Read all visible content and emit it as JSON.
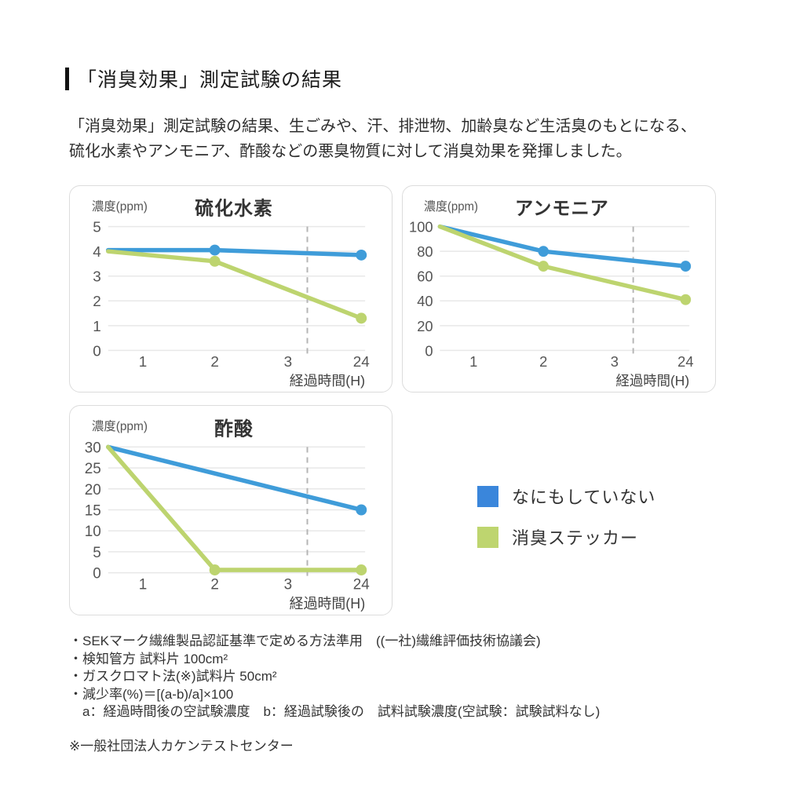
{
  "page": {
    "title": "「消臭効果」測定試験の結果",
    "description_lines": [
      "「消臭効果」測定試験の結果、生ごみや、汗、排泄物、加齢臭など生活臭のもとになる、",
      "硫化水素やアンモニア、酢酸などの悪臭物質に対して消臭効果を発揮しました。"
    ]
  },
  "colors": {
    "line_blue": "#3f9cd9",
    "line_green": "#bdd46f",
    "legend_blue": "#3a86db",
    "legend_green": "#bed56f",
    "grid": "#e8e8e8",
    "dashed_break": "#b5b5b5",
    "card_border": "#dcdcdc",
    "tick_text": "#555555",
    "chart_title_text": "#333333"
  },
  "legend": {
    "items": [
      {
        "label": "なにもしていない",
        "color_key": "legend_blue"
      },
      {
        "label": "消臭ステッカー",
        "color_key": "legend_green"
      }
    ]
  },
  "chart_data": [
    {
      "type": "line",
      "title": "硫化水素",
      "ylabel": "濃度(ppm)",
      "xlabel": "経過時間(H)",
      "ymax": 5,
      "yticks": [
        0,
        1,
        2,
        3,
        4,
        5
      ],
      "xticks": [
        "1",
        "2",
        "3",
        "24"
      ],
      "axis_break_between": [
        "3",
        "24"
      ],
      "grid": "horizontal",
      "series": [
        {
          "name": "なにもしていない",
          "color": "blue",
          "points": [
            {
              "t": 0,
              "v": 4.05
            },
            {
              "t": 2,
              "v": 4.05
            },
            {
              "t": 24,
              "v": 3.85
            }
          ]
        },
        {
          "name": "消臭ステッカー",
          "color": "green",
          "points": [
            {
              "t": 0,
              "v": 4.0
            },
            {
              "t": 2,
              "v": 3.6
            },
            {
              "t": 24,
              "v": 1.3
            }
          ]
        }
      ]
    },
    {
      "type": "line",
      "title": "アンモニア",
      "ylabel": "濃度(ppm)",
      "xlabel": "経過時間(H)",
      "ymax": 100,
      "yticks": [
        0,
        20,
        40,
        60,
        80,
        100
      ],
      "xticks": [
        "1",
        "2",
        "3",
        "24"
      ],
      "axis_break_between": [
        "3",
        "24"
      ],
      "grid": "horizontal",
      "series": [
        {
          "name": "なにもしていない",
          "color": "blue",
          "points": [
            {
              "t": 0,
              "v": 100
            },
            {
              "t": 2,
              "v": 80
            },
            {
              "t": 24,
              "v": 68
            }
          ]
        },
        {
          "name": "消臭ステッカー",
          "color": "green",
          "points": [
            {
              "t": 0,
              "v": 100
            },
            {
              "t": 2,
              "v": 68
            },
            {
              "t": 24,
              "v": 41
            }
          ]
        }
      ]
    },
    {
      "type": "line",
      "title": "酢酸",
      "ylabel": "濃度(ppm)",
      "xlabel": "経過時間(H)",
      "ymax": 30,
      "yticks": [
        0,
        5,
        10,
        15,
        20,
        25,
        30
      ],
      "xticks": [
        "1",
        "2",
        "3",
        "24"
      ],
      "axis_break_between": [
        "3",
        "24"
      ],
      "grid": "horizontal",
      "series": [
        {
          "name": "なにもしていない",
          "color": "blue",
          "points": [
            {
              "t": 0,
              "v": 30
            },
            {
              "t": 24,
              "v": 15
            }
          ]
        },
        {
          "name": "消臭ステッカー",
          "color": "green",
          "points": [
            {
              "t": 0,
              "v": 30
            },
            {
              "t": 2,
              "v": 0
            },
            {
              "t": 24,
              "v": 0
            }
          ]
        }
      ]
    }
  ],
  "footnotes": {
    "lines": [
      "・SEKマーク繊維製品認証基準で定める方法準用　((一社)繊維評価技術協議会)",
      "・検知管方 試料片 100cm²",
      "・ガスクロマト法(※)試料片 50cm²",
      "・減少率(%)＝[(a-b)/a]×100",
      "　a：経過時間後の空試験濃度　b：経過試験後の　試料試験濃度(空試験：試験試料なし)"
    ],
    "source_note": "※一般社団法人カケンテストセンター"
  }
}
